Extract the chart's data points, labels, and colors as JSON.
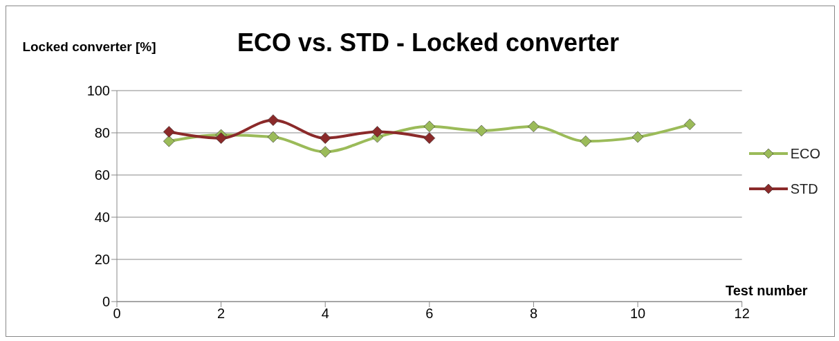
{
  "chart_data": {
    "type": "line",
    "title": "ECO vs. STD - Locked converter",
    "xlabel": "Test number",
    "ylabel": "Locked converter [%]",
    "xlim": [
      0,
      12
    ],
    "xticks": [
      0,
      2,
      4,
      6,
      8,
      10,
      12
    ],
    "ylim": [
      0,
      100
    ],
    "yticks": [
      0,
      20,
      40,
      60,
      80,
      100
    ],
    "grid": "y",
    "legend": "right",
    "marker": "diamond",
    "series": [
      {
        "name": "ECO",
        "color": "#9bbb59",
        "x": [
          1,
          2,
          3,
          4,
          5,
          6,
          7,
          8,
          9,
          10,
          11
        ],
        "values": [
          76,
          79,
          78,
          71,
          78,
          83,
          81,
          83,
          76,
          78,
          84
        ]
      },
      {
        "name": "STD",
        "color": "#8b2a2a",
        "x": [
          1,
          2,
          3,
          4,
          5,
          6
        ],
        "values": [
          80.5,
          77.5,
          86,
          77.5,
          80.5,
          77.5
        ]
      }
    ]
  }
}
